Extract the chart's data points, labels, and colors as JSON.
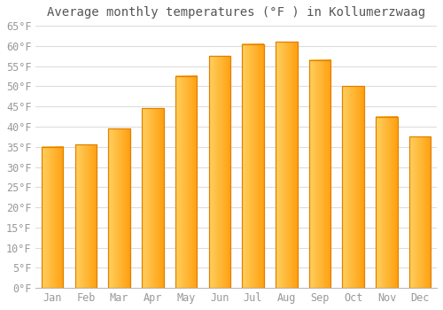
{
  "title": "Average monthly temperatures (°F ) in Kollumerzwaag",
  "months": [
    "Jan",
    "Feb",
    "Mar",
    "Apr",
    "May",
    "Jun",
    "Jul",
    "Aug",
    "Sep",
    "Oct",
    "Nov",
    "Dec"
  ],
  "values": [
    35,
    35.5,
    39.5,
    44.5,
    52.5,
    57.5,
    60.5,
    61,
    56.5,
    50,
    42.5,
    37.5
  ],
  "bar_color_left": "#FFD060",
  "bar_color_right": "#FFA010",
  "bar_edge_color": "#E08000",
  "ylim": [
    0,
    65
  ],
  "yticks": [
    0,
    5,
    10,
    15,
    20,
    25,
    30,
    35,
    40,
    45,
    50,
    55,
    60,
    65
  ],
  "ytick_labels": [
    "0°F",
    "5°F",
    "10°F",
    "15°F",
    "20°F",
    "25°F",
    "30°F",
    "35°F",
    "40°F",
    "45°F",
    "50°F",
    "55°F",
    "60°F",
    "65°F"
  ],
  "background_color": "#FFFFFF",
  "grid_color": "#DDDDDD",
  "title_fontsize": 10,
  "tick_fontsize": 8.5,
  "tick_color": "#999999"
}
